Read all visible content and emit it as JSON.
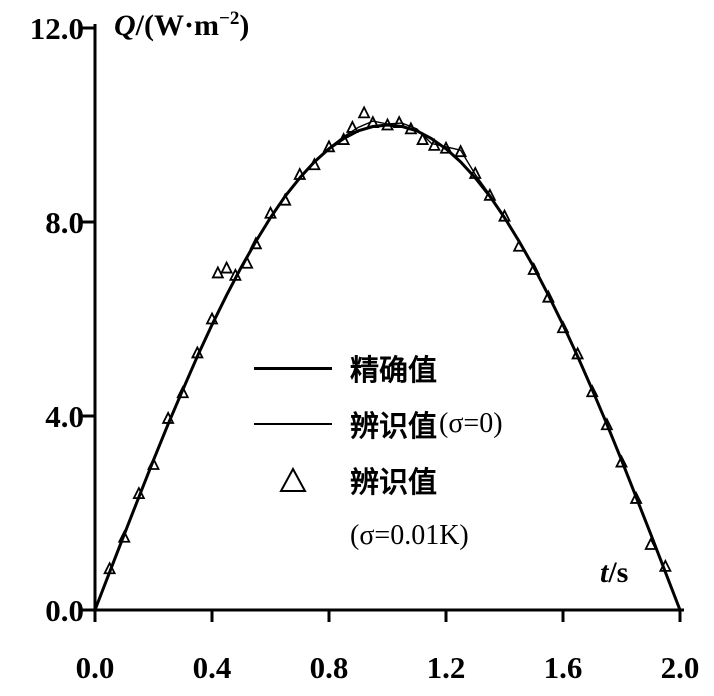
{
  "chart_data": {
    "type": "line",
    "title": "",
    "xlabel_parts": {
      "symbol": "t",
      "unit": "/s"
    },
    "ylabel_parts": {
      "symbol": "Q",
      "pre": "/(W·m",
      "sup": "−2",
      "post": ")"
    },
    "xlim": [
      0.0,
      2.0
    ],
    "ylim": [
      0.0,
      12.0
    ],
    "xticks": [
      0.0,
      0.4,
      0.8,
      1.2,
      1.6,
      2.0
    ],
    "xtick_labels": [
      "0.0",
      "0.4",
      "0.8",
      "1.2",
      "1.6",
      "2.0"
    ],
    "yticks": [
      0.0,
      4.0,
      8.0,
      12.0
    ],
    "ytick_labels": [
      "0.0",
      "4.0",
      "8.0",
      "12.0"
    ],
    "grid": false,
    "legend_position": "inside center",
    "legend": {
      "rows": [
        {
          "marker": "line-thick",
          "label": "精确值",
          "paren": ""
        },
        {
          "marker": "line-thin",
          "label": "辨识值",
          "paren": "(σ=0)"
        },
        {
          "marker": "triangle",
          "label": "辨识值",
          "paren": ""
        },
        {
          "marker": "none",
          "label": "",
          "paren": "(σ=0.01K)"
        }
      ]
    },
    "series": [
      {
        "name": "精确值",
        "type": "line",
        "width": 3,
        "x": [
          0.0,
          0.05,
          0.1,
          0.15,
          0.2,
          0.25,
          0.3,
          0.35,
          0.4,
          0.45,
          0.5,
          0.55,
          0.6,
          0.65,
          0.7,
          0.75,
          0.8,
          0.85,
          0.9,
          0.95,
          1.0,
          1.05,
          1.1,
          1.15,
          1.2,
          1.25,
          1.3,
          1.35,
          1.4,
          1.45,
          1.5,
          1.55,
          1.6,
          1.65,
          1.7,
          1.75,
          1.8,
          1.85,
          1.9,
          1.95,
          2.0
        ],
        "y": [
          0.0,
          0.78,
          1.56,
          2.33,
          3.09,
          3.83,
          4.54,
          5.23,
          5.88,
          6.49,
          7.07,
          7.6,
          8.09,
          8.53,
          8.91,
          9.24,
          9.51,
          9.72,
          9.88,
          9.97,
          10.0,
          9.97,
          9.88,
          9.72,
          9.51,
          9.24,
          8.91,
          8.53,
          8.09,
          7.6,
          7.07,
          6.49,
          5.88,
          5.23,
          4.54,
          3.83,
          3.09,
          2.33,
          1.56,
          0.78,
          0.0
        ]
      },
      {
        "name": "辨识值(σ=0)",
        "type": "line",
        "width": 1.4,
        "x": [
          0.0,
          0.05,
          0.1,
          0.15,
          0.2,
          0.25,
          0.3,
          0.35,
          0.4,
          0.45,
          0.5,
          0.55,
          0.6,
          0.65,
          0.7,
          0.75,
          0.8,
          0.85,
          0.9,
          0.95,
          1.0,
          1.05,
          1.1,
          1.15,
          1.2,
          1.25,
          1.3,
          1.35,
          1.4,
          1.45,
          1.5,
          1.55,
          1.6,
          1.65,
          1.7,
          1.75,
          1.8,
          1.85,
          1.9,
          1.95,
          2.0
        ],
        "y": [
          0.0,
          0.8,
          1.58,
          2.35,
          3.1,
          3.85,
          4.56,
          5.25,
          5.9,
          6.52,
          7.08,
          7.62,
          8.1,
          8.55,
          8.93,
          9.26,
          9.53,
          9.76,
          9.95,
          10.08,
          10.02,
          10.04,
          9.92,
          9.62,
          9.55,
          9.48,
          8.98,
          8.56,
          8.1,
          7.62,
          7.08,
          6.5,
          5.89,
          5.24,
          4.55,
          3.84,
          3.1,
          2.34,
          1.57,
          0.79,
          0.02
        ]
      },
      {
        "name": "辨识值(σ=0.01K)",
        "type": "scatter",
        "marker": "triangle-open",
        "x": [
          0.05,
          0.1,
          0.15,
          0.2,
          0.25,
          0.3,
          0.35,
          0.4,
          0.42,
          0.45,
          0.48,
          0.52,
          0.55,
          0.6,
          0.65,
          0.7,
          0.75,
          0.8,
          0.85,
          0.88,
          0.92,
          0.95,
          1.0,
          1.04,
          1.08,
          1.12,
          1.16,
          1.2,
          1.25,
          1.3,
          1.35,
          1.4,
          1.45,
          1.5,
          1.55,
          1.6,
          1.65,
          1.7,
          1.75,
          1.8,
          1.85,
          1.9,
          1.95
        ],
        "y": [
          0.85,
          1.5,
          2.4,
          3.0,
          3.95,
          4.48,
          5.3,
          6.0,
          6.95,
          7.05,
          6.9,
          7.15,
          7.55,
          8.18,
          8.45,
          8.98,
          9.18,
          9.55,
          9.7,
          9.95,
          10.25,
          10.05,
          10.0,
          10.05,
          9.92,
          9.7,
          9.58,
          9.52,
          9.45,
          9.0,
          8.55,
          8.12,
          7.5,
          7.02,
          6.45,
          5.82,
          5.28,
          4.5,
          3.82,
          3.05,
          2.3,
          1.35,
          0.9
        ]
      }
    ],
    "colors": {
      "axis": "#000000",
      "line": "#000000",
      "marker": "#000000",
      "background": "#ffffff"
    }
  }
}
